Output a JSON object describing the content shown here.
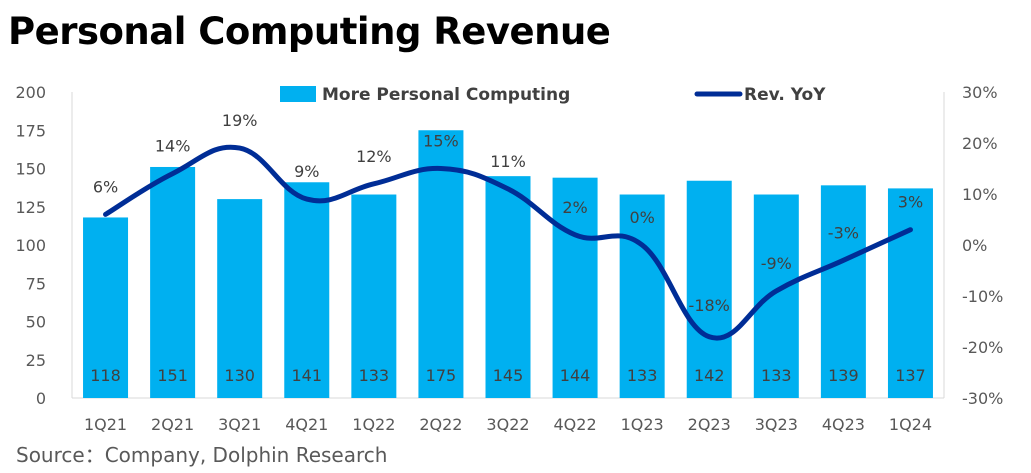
{
  "title": "Personal Computing Revenue",
  "source": "Source：Company, Dolphin Research",
  "colors": {
    "bar": "#00b0f0",
    "line": "#002d96",
    "axis": "#d9d9d9",
    "text": "#595959"
  },
  "chart_data": {
    "type": "bar",
    "categories": [
      "1Q21",
      "2Q21",
      "3Q21",
      "4Q21",
      "1Q22",
      "2Q22",
      "3Q22",
      "4Q22",
      "1Q23",
      "2Q23",
      "3Q23",
      "4Q23",
      "1Q24"
    ],
    "series": [
      {
        "name": "More Personal Computing",
        "type": "bar",
        "axis": "left",
        "values": [
          118,
          151,
          130,
          141,
          133,
          175,
          145,
          144,
          133,
          142,
          133,
          139,
          137
        ]
      },
      {
        "name": "Rev. YoY",
        "type": "line",
        "axis": "right",
        "values": [
          6,
          14,
          19,
          9,
          12,
          15,
          11,
          2,
          0,
          -18,
          -9,
          -3,
          3
        ],
        "labels": [
          "6%",
          "14%",
          "19%",
          "9%",
          "12%",
          "15%",
          "11%",
          "2%",
          "0%",
          "-18%",
          "-9%",
          "-3%",
          "3%"
        ]
      }
    ],
    "y_left": {
      "min": 0,
      "max": 200,
      "ticks": [
        "0",
        "25",
        "50",
        "75",
        "100",
        "125",
        "150",
        "175",
        "200"
      ]
    },
    "y_right": {
      "min": -30,
      "max": 30,
      "ticks": [
        "-30%",
        "-20%",
        "-10%",
        "0%",
        "10%",
        "20%",
        "30%"
      ]
    },
    "legend_position": "top",
    "grid": false
  }
}
